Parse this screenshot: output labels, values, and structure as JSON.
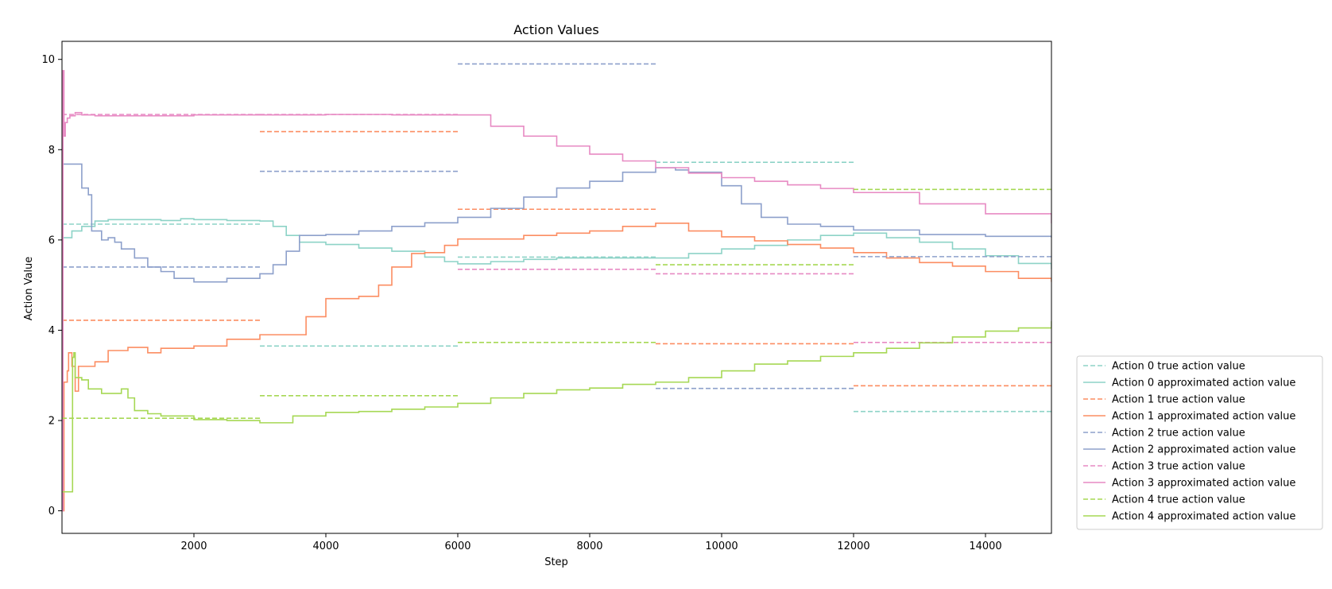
{
  "chart_data": {
    "type": "line",
    "title": "Action Values",
    "xlabel": "Step",
    "ylabel": "Action Value",
    "xlim": [
      0,
      15000
    ],
    "ylim": [
      -0.5,
      10.4
    ],
    "xticks": [
      2000,
      4000,
      6000,
      8000,
      10000,
      12000,
      14000
    ],
    "yticks": [
      0,
      2,
      4,
      6,
      8,
      10
    ],
    "grid": false,
    "legend_position": "lower-right-outside",
    "colors": [
      "#8dd3c7",
      "#fc8d62",
      "#8da0cb",
      "#e78ac3",
      "#a6d854"
    ],
    "series": [
      {
        "name": "Action 0 true action value",
        "style": "dashed",
        "color": "#8dd3c7",
        "segments": [
          {
            "x": [
              0,
              3000
            ],
            "y": 6.35
          },
          {
            "x": [
              3000,
              6000
            ],
            "y": 3.65
          },
          {
            "x": [
              6000,
              9000
            ],
            "y": 5.62
          },
          {
            "x": [
              9000,
              12000
            ],
            "y": 7.72
          },
          {
            "x": [
              12000,
              15000
            ],
            "y": 2.2
          }
        ]
      },
      {
        "name": "Action 0 approximated action value",
        "style": "solid",
        "color": "#8dd3c7",
        "x": [
          0,
          50,
          150,
          300,
          500,
          700,
          1000,
          1500,
          1800,
          2000,
          2500,
          3000,
          3200,
          3400,
          3600,
          4000,
          4500,
          5000,
          5500,
          5800,
          6000,
          6500,
          7000,
          7500,
          8000,
          8500,
          9000,
          9500,
          10000,
          10500,
          11000,
          11500,
          12000,
          12500,
          13000,
          13500,
          14000,
          14500,
          15000
        ],
        "y": [
          6.05,
          6.05,
          6.2,
          6.3,
          6.42,
          6.45,
          6.45,
          6.43,
          6.47,
          6.45,
          6.43,
          6.42,
          6.3,
          6.1,
          5.95,
          5.9,
          5.82,
          5.75,
          5.62,
          5.52,
          5.47,
          5.52,
          5.57,
          5.6,
          5.6,
          5.6,
          5.6,
          5.7,
          5.8,
          5.88,
          6.0,
          6.1,
          6.15,
          6.05,
          5.95,
          5.8,
          5.65,
          5.48,
          5.35
        ]
      },
      {
        "name": "Action 1 true action value",
        "style": "dashed",
        "color": "#fc8d62",
        "segments": [
          {
            "x": [
              0,
              3000
            ],
            "y": 4.22
          },
          {
            "x": [
              3000,
              6000
            ],
            "y": 8.4
          },
          {
            "x": [
              6000,
              9000
            ],
            "y": 6.68
          },
          {
            "x": [
              9000,
              12000
            ],
            "y": 3.7
          },
          {
            "x": [
              12000,
              15000
            ],
            "y": 2.77
          }
        ]
      },
      {
        "name": "Action 1 approximated action value",
        "style": "solid",
        "color": "#fc8d62",
        "x": [
          0,
          30,
          60,
          80,
          100,
          150,
          200,
          250,
          300,
          500,
          700,
          1000,
          1300,
          1500,
          2000,
          2500,
          3000,
          3500,
          3700,
          4000,
          4500,
          4800,
          5000,
          5300,
          5500,
          5800,
          6000,
          6500,
          7000,
          7500,
          8000,
          8500,
          9000,
          9500,
          10000,
          10500,
          11000,
          11500,
          12000,
          12500,
          13000,
          13500,
          14000,
          14500,
          15000
        ],
        "y": [
          0,
          2.85,
          2.85,
          3.1,
          3.5,
          3.2,
          2.65,
          3.2,
          3.2,
          3.3,
          3.55,
          3.62,
          3.5,
          3.6,
          3.65,
          3.8,
          3.9,
          3.9,
          4.3,
          4.7,
          4.75,
          5.0,
          5.4,
          5.7,
          5.72,
          5.88,
          6.02,
          6.02,
          6.1,
          6.15,
          6.2,
          6.3,
          6.37,
          6.2,
          6.07,
          5.98,
          5.9,
          5.82,
          5.72,
          5.6,
          5.5,
          5.42,
          5.3,
          5.15,
          5.07
        ]
      },
      {
        "name": "Action 2 true action value",
        "style": "dashed",
        "color": "#8da0cb",
        "segments": [
          {
            "x": [
              0,
              3000
            ],
            "y": 5.4
          },
          {
            "x": [
              3000,
              6000
            ],
            "y": 7.52
          },
          {
            "x": [
              6000,
              9000
            ],
            "y": 9.9
          },
          {
            "x": [
              9000,
              12000
            ],
            "y": 2.71
          },
          {
            "x": [
              12000,
              15000
            ],
            "y": 5.63
          }
        ]
      },
      {
        "name": "Action 2 approximated action value",
        "style": "solid",
        "color": "#8da0cb",
        "x": [
          0,
          120,
          300,
          400,
          450,
          600,
          700,
          800,
          900,
          1100,
          1300,
          1500,
          1700,
          2000,
          2500,
          3000,
          3200,
          3400,
          3600,
          4000,
          4500,
          5000,
          5500,
          6000,
          6500,
          7000,
          7500,
          8000,
          8500,
          9000,
          9300,
          9500,
          10000,
          10300,
          10600,
          11000,
          11500,
          12000,
          13000,
          14000,
          15000
        ],
        "y": [
          7.68,
          7.68,
          7.15,
          7.0,
          6.2,
          6.0,
          6.05,
          5.95,
          5.8,
          5.6,
          5.4,
          5.3,
          5.15,
          5.07,
          5.15,
          5.25,
          5.45,
          5.75,
          6.1,
          6.12,
          6.2,
          6.3,
          6.38,
          6.5,
          6.7,
          6.95,
          7.15,
          7.3,
          7.5,
          7.6,
          7.55,
          7.5,
          7.2,
          6.8,
          6.5,
          6.35,
          6.3,
          6.22,
          6.12,
          6.08,
          6.05
        ]
      },
      {
        "name": "Action 3 true action value",
        "style": "dashed",
        "color": "#e78ac3",
        "segments": [
          {
            "x": [
              0,
              3000
            ],
            "y": 8.78
          },
          {
            "x": [
              3000,
              6000
            ],
            "y": 8.78
          },
          {
            "x": [
              6000,
              9000
            ],
            "y": 5.35
          },
          {
            "x": [
              9000,
              12000
            ],
            "y": 5.25
          },
          {
            "x": [
              12000,
              15000
            ],
            "y": 3.73
          }
        ]
      },
      {
        "name": "Action 3 approximated action value",
        "style": "solid",
        "color": "#e78ac3",
        "x": [
          0,
          15,
          30,
          50,
          80,
          120,
          200,
          300,
          500,
          1000,
          2000,
          3000,
          4000,
          5000,
          6000,
          6500,
          7000,
          7500,
          8000,
          8500,
          9000,
          9500,
          10000,
          10500,
          11000,
          11500,
          12000,
          13000,
          14000,
          15000
        ],
        "y": [
          0,
          9.75,
          8.3,
          8.6,
          8.7,
          8.75,
          8.82,
          8.77,
          8.75,
          8.75,
          8.77,
          8.77,
          8.78,
          8.77,
          8.77,
          8.52,
          8.3,
          8.08,
          7.9,
          7.75,
          7.6,
          7.48,
          7.38,
          7.3,
          7.22,
          7.14,
          7.05,
          6.8,
          6.58,
          6.37
        ]
      },
      {
        "name": "Action 4 true action value",
        "style": "dashed",
        "color": "#a6d854",
        "segments": [
          {
            "x": [
              0,
              3000
            ],
            "y": 2.05
          },
          {
            "x": [
              3000,
              6000
            ],
            "y": 2.55
          },
          {
            "x": [
              6000,
              9000
            ],
            "y": 3.73
          },
          {
            "x": [
              9000,
              12000
            ],
            "y": 5.45
          },
          {
            "x": [
              12000,
              15000
            ],
            "y": 7.12
          }
        ]
      },
      {
        "name": "Action 4 approximated action value",
        "style": "solid",
        "color": "#a6d854",
        "x": [
          0,
          150,
          160,
          180,
          200,
          250,
          300,
          400,
          600,
          900,
          1000,
          1100,
          1300,
          1500,
          2000,
          2500,
          3000,
          3500,
          4000,
          4500,
          5000,
          5500,
          6000,
          6500,
          7000,
          7500,
          8000,
          8500,
          9000,
          9500,
          10000,
          10500,
          11000,
          11500,
          12000,
          12500,
          13000,
          13500,
          14000,
          14500,
          15000
        ],
        "y": [
          0.42,
          0.42,
          3.4,
          3.5,
          2.95,
          2.95,
          2.9,
          2.7,
          2.6,
          2.7,
          2.5,
          2.22,
          2.15,
          2.1,
          2.02,
          2.0,
          1.95,
          2.1,
          2.18,
          2.2,
          2.25,
          2.3,
          2.38,
          2.5,
          2.6,
          2.68,
          2.72,
          2.8,
          2.85,
          2.95,
          3.1,
          3.25,
          3.32,
          3.42,
          3.5,
          3.6,
          3.72,
          3.85,
          3.98,
          4.05,
          4.2
        ]
      }
    ]
  }
}
